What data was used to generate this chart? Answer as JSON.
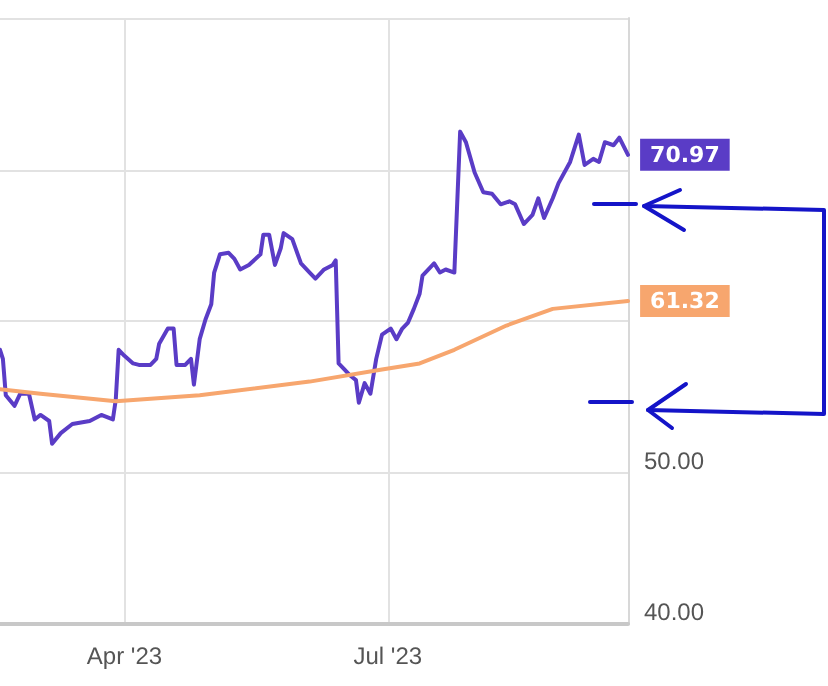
{
  "chart_data": {
    "type": "line",
    "xlim": [
      "2023-02-17",
      "2023-09-22"
    ],
    "xticks": [
      {
        "value": "2023-04-01",
        "label": "Apr '23"
      },
      {
        "value": "2023-07-01",
        "label": "Jul '23"
      }
    ],
    "ylim": [
      40,
      80
    ],
    "yticks": [
      {
        "value": 40,
        "label": "40.00"
      },
      {
        "value": 50,
        "label": "50.00"
      },
      {
        "value": 60,
        "label": null
      },
      {
        "value": 70,
        "label": null
      },
      {
        "value": 80,
        "label": null
      }
    ],
    "grid": true,
    "marker": "none",
    "line_style": "solid",
    "series": [
      {
        "color": "#5a3cc6",
        "x": [
          "2023-02-17",
          "2023-02-18",
          "2023-02-19",
          "2023-02-22",
          "2023-02-24",
          "2023-02-27",
          "2023-03-01",
          "2023-03-03",
          "2023-03-06",
          "2023-03-07",
          "2023-03-10",
          "2023-03-14",
          "2023-03-20",
          "2023-03-24",
          "2023-03-28",
          "2023-03-29",
          "2023-03-30",
          "2023-04-01",
          "2023-04-04",
          "2023-04-06",
          "2023-04-10",
          "2023-04-12",
          "2023-04-13",
          "2023-04-16",
          "2023-04-18",
          "2023-04-19",
          "2023-04-22",
          "2023-04-24",
          "2023-04-25",
          "2023-04-27",
          "2023-04-29",
          "2023-05-01",
          "2023-05-02",
          "2023-05-04",
          "2023-05-07",
          "2023-05-09",
          "2023-05-11",
          "2023-05-14",
          "2023-05-18",
          "2023-05-19",
          "2023-05-21",
          "2023-05-23",
          "2023-05-25",
          "2023-05-26",
          "2023-05-29",
          "2023-06-01",
          "2023-06-04",
          "2023-06-06",
          "2023-06-09",
          "2023-06-12",
          "2023-06-13",
          "2023-06-14",
          "2023-06-16",
          "2023-06-18",
          "2023-06-20",
          "2023-06-21",
          "2023-06-23",
          "2023-06-25",
          "2023-06-27",
          "2023-06-29",
          "2023-07-02",
          "2023-07-04",
          "2023-07-06",
          "2023-07-08",
          "2023-07-10",
          "2023-07-12",
          "2023-07-13",
          "2023-07-17",
          "2023-07-19",
          "2023-07-21",
          "2023-07-24",
          "2023-07-26",
          "2023-07-28",
          "2023-07-31",
          "2023-08-03",
          "2023-08-06",
          "2023-08-09",
          "2023-08-12",
          "2023-08-14",
          "2023-08-17",
          "2023-08-20",
          "2023-08-22",
          "2023-08-24",
          "2023-08-27",
          "2023-08-29",
          "2023-09-02",
          "2023-09-05",
          "2023-09-07",
          "2023-09-10",
          "2023-09-12",
          "2023-09-14",
          "2023-09-17",
          "2023-09-19",
          "2023-09-22"
        ],
        "values": [
          58.1,
          57.5,
          55.1,
          54.4,
          55.2,
          55.2,
          53.5,
          53.8,
          53.4,
          51.9,
          52.6,
          53.2,
          53.4,
          53.8,
          53.5,
          54.8,
          58.1,
          57.7,
          57.2,
          57.1,
          57.1,
          57.5,
          58.5,
          59.5,
          59.5,
          57.1,
          57.1,
          57.5,
          55.8,
          58.8,
          60.1,
          61.1,
          63.2,
          64.4,
          64.5,
          64.1,
          63.4,
          63.7,
          64.4,
          65.7,
          65.7,
          63.7,
          64.8,
          65.8,
          65.4,
          63.8,
          63.2,
          62.8,
          63.4,
          63.7,
          64.0,
          57.2,
          56.8,
          56.4,
          56.1,
          54.6,
          55.9,
          55.2,
          57.5,
          59.1,
          59.5,
          58.8,
          59.5,
          59.9,
          60.8,
          61.8,
          63.0,
          63.8,
          63.2,
          63.4,
          63.2,
          72.5,
          71.8,
          69.8,
          68.5,
          68.4,
          67.7,
          67.9,
          67.7,
          66.4,
          67.0,
          68.1,
          66.8,
          68.1,
          69.1,
          70.5,
          72.3,
          70.3,
          70.7,
          70.5,
          71.8,
          71.6,
          72.1,
          70.97
        ],
        "value_labels": [
          null,
          null,
          null,
          null,
          null,
          null,
          null,
          null,
          null,
          null,
          null,
          null,
          null,
          null,
          null,
          null,
          null,
          null,
          null,
          null,
          null,
          null,
          null,
          null,
          null,
          null,
          null,
          null,
          null,
          null,
          null,
          null,
          null,
          null,
          null,
          null,
          null,
          null,
          null,
          null,
          null,
          null,
          null,
          null,
          null,
          null,
          null,
          null,
          null,
          null,
          null,
          null,
          null,
          null,
          null,
          null,
          null,
          null,
          null,
          null,
          null,
          null,
          null,
          null,
          null,
          null,
          null,
          null,
          null,
          null,
          null,
          null,
          null,
          null,
          null,
          null,
          null,
          null,
          null,
          null,
          null,
          null,
          null,
          null,
          null,
          null,
          null,
          null,
          null,
          null,
          null,
          null,
          null,
          "70.97"
        ]
      },
      {
        "color": "#f7a66e",
        "x": [
          "2023-02-17",
          "2023-03-03",
          "2023-03-29",
          "2023-04-27",
          "2023-06-04",
          "2023-06-29",
          "2023-07-12",
          "2023-07-24",
          "2023-08-11",
          "2023-08-27",
          "2023-09-22"
        ],
        "values": [
          55.5,
          55.2,
          54.7,
          55.1,
          56.0,
          56.8,
          57.2,
          58.1,
          59.7,
          60.8,
          61.32
        ],
        "value_labels": [
          null,
          null,
          null,
          null,
          null,
          null,
          null,
          null,
          null,
          null,
          "61.32"
        ]
      }
    ]
  }
}
